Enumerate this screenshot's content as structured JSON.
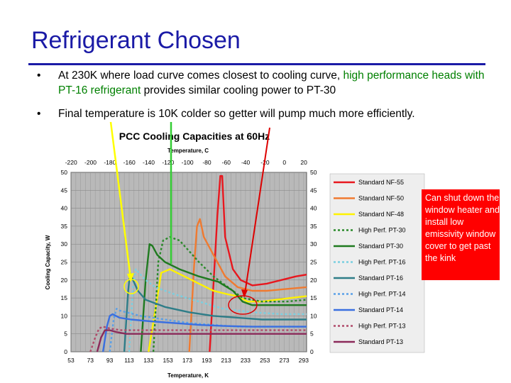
{
  "slide": {
    "title": "Refrigerant Chosen",
    "bullet_char": "•",
    "bullets": [
      {
        "part1": "At 230K where load curve comes closest to cooling curve, ",
        "highlight": "high performance heads with PT-16 refrigerant",
        "part2": " provides similar cooling power to PT-30"
      },
      {
        "text": "Final temperature is 10K colder so getter will pump much more efficiently."
      }
    ],
    "note": "Can shut down the window heater and install low emissivity window cover to get past the kink"
  },
  "colors": {
    "title": "#1a1aa6",
    "highlight": "#008000",
    "note_bg": "#ff0000",
    "annotation_green": "#33cc33",
    "annotation_yellow": "#ffff00",
    "annotation_red": "#dd0000"
  },
  "chart_data": {
    "type": "line",
    "title": "PCC Cooling Capacities at 60Hz",
    "top_axis_label": "Temperature, C",
    "xlabel": "Temperature, K",
    "ylabel": "Cooling Capacity, W",
    "xlim": [
      53,
      296
    ],
    "ylim": [
      0,
      50
    ],
    "xticks": [
      53,
      73,
      93,
      113,
      133,
      153,
      173,
      193,
      213,
      233,
      253,
      273,
      293
    ],
    "xtick_labels": [
      "53",
      "73",
      "93",
      "113",
      "133",
      "153",
      "173",
      "193",
      "213",
      "233",
      "253",
      "273",
      "293"
    ],
    "top_ticks": [
      -220,
      -200,
      -180,
      -160,
      -140,
      -120,
      -100,
      -80,
      -60,
      -40,
      -20,
      0,
      20
    ],
    "top_tick_labels": [
      "-220",
      "-200",
      "-180",
      "-160",
      "-140",
      "-120",
      "-100",
      "-80",
      "-60",
      "-40",
      "-20",
      "0",
      "20"
    ],
    "yticks": [
      0,
      5,
      10,
      15,
      20,
      25,
      30,
      35,
      40,
      45,
      50
    ],
    "ytick_labels": [
      "0",
      "5",
      "10",
      "15",
      "20",
      "25",
      "30",
      "35",
      "40",
      "45",
      "50"
    ],
    "grid": true,
    "legend_position": "right",
    "series": [
      {
        "name": "Standard NF-55",
        "color": "#e8171e",
        "dash": "solid",
        "x": [
          196,
          204,
          207,
          209,
          212,
          220,
          228,
          240,
          255,
          270,
          285,
          296
        ],
        "y": [
          0,
          38,
          49,
          49,
          32,
          23,
          20,
          18.5,
          19,
          20,
          21,
          21.5
        ]
      },
      {
        "name": "Standard NF-50",
        "color": "#f07a30",
        "dash": "solid",
        "x": [
          175,
          180,
          183,
          186,
          190,
          200,
          212,
          225,
          240,
          255,
          275,
          296
        ],
        "y": [
          0,
          24,
          35,
          37,
          32,
          27,
          21,
          18,
          17,
          17,
          17.5,
          18
        ]
      },
      {
        "name": "Standard NF-48",
        "color": "#fff200",
        "dash": "solid",
        "x": [
          133,
          139,
          146,
          155,
          170,
          185,
          200,
          215,
          225,
          235,
          250,
          265,
          280,
          296
        ],
        "y": [
          0,
          10,
          22,
          23,
          21,
          19,
          17,
          16,
          15.5,
          14,
          14,
          14.5,
          15,
          15.5
        ]
      },
      {
        "name": "High Perf. PT-30",
        "color": "#2a8a2a",
        "dash": "dash",
        "x": [
          138,
          143,
          148,
          155,
          165,
          175,
          185,
          200,
          215,
          230,
          250,
          275,
          296
        ],
        "y": [
          0,
          25,
          31,
          32,
          31,
          28,
          25,
          21,
          18,
          15,
          14,
          14,
          14.5
        ]
      },
      {
        "name": "Standard PT-30",
        "color": "#1f7a1f",
        "dash": "solid",
        "x": [
          125,
          130,
          134,
          137,
          142,
          150,
          165,
          185,
          205,
          220,
          230,
          240,
          260,
          280,
          296
        ],
        "y": [
          0,
          20,
          30,
          29.5,
          27,
          25,
          23,
          21,
          19.5,
          17,
          14,
          13,
          13,
          13,
          13
        ]
      },
      {
        "name": "High Perf. PT-16",
        "color": "#7acfe0",
        "dash": "dash",
        "x": [
          113,
          117,
          120,
          123,
          130,
          140,
          160,
          185,
          210,
          240,
          270,
          296
        ],
        "y": [
          0,
          18,
          23,
          22,
          20,
          18,
          16,
          14,
          12,
          11,
          10.5,
          10.5
        ]
      },
      {
        "name": "Standard PT-16",
        "color": "#2e7d88",
        "dash": "solid",
        "x": [
          108,
          112,
          114,
          117,
          122,
          130,
          150,
          175,
          200,
          225,
          250,
          275,
          296
        ],
        "y": [
          0,
          17,
          22,
          20,
          17,
          14.5,
          12.5,
          11,
          10,
          9.5,
          9,
          9,
          9
        ]
      },
      {
        "name": "High Perf. PT-14",
        "color": "#5aa0e8",
        "dash": "dash",
        "x": [
          93,
          97,
          100,
          103,
          110,
          125,
          150,
          175,
          200,
          225,
          250,
          275,
          296
        ],
        "y": [
          0,
          9,
          12,
          11.5,
          11,
          10,
          9,
          8,
          7.5,
          7,
          7,
          7,
          7
        ]
      },
      {
        "name": "Standard PT-14",
        "color": "#3a6fe0",
        "dash": "solid",
        "x": [
          86,
          90,
          93,
          96,
          103,
          115,
          135,
          160,
          185,
          210,
          240,
          270,
          296
        ],
        "y": [
          0,
          7,
          10,
          10.5,
          9.5,
          9,
          8.5,
          8,
          7.5,
          7.2,
          7,
          7,
          7
        ]
      },
      {
        "name": "High Perf. PT-13",
        "color": "#b04a6a",
        "dash": "dash",
        "x": [
          73,
          78,
          82,
          86,
          93,
          105,
          125,
          150,
          175,
          200,
          230,
          260,
          296
        ],
        "y": [
          0,
          4,
          6.5,
          7,
          6.5,
          6,
          6,
          6,
          6,
          6,
          6,
          6,
          6
        ]
      },
      {
        "name": "Standard PT-13",
        "color": "#8b2a5a",
        "dash": "solid",
        "x": [
          80,
          84,
          88,
          93,
          100,
          110,
          130,
          160,
          190,
          220,
          250,
          280,
          296
        ],
        "y": [
          0,
          4,
          6,
          6,
          5.5,
          5,
          5,
          5,
          5,
          5,
          5,
          5,
          5
        ]
      }
    ]
  }
}
